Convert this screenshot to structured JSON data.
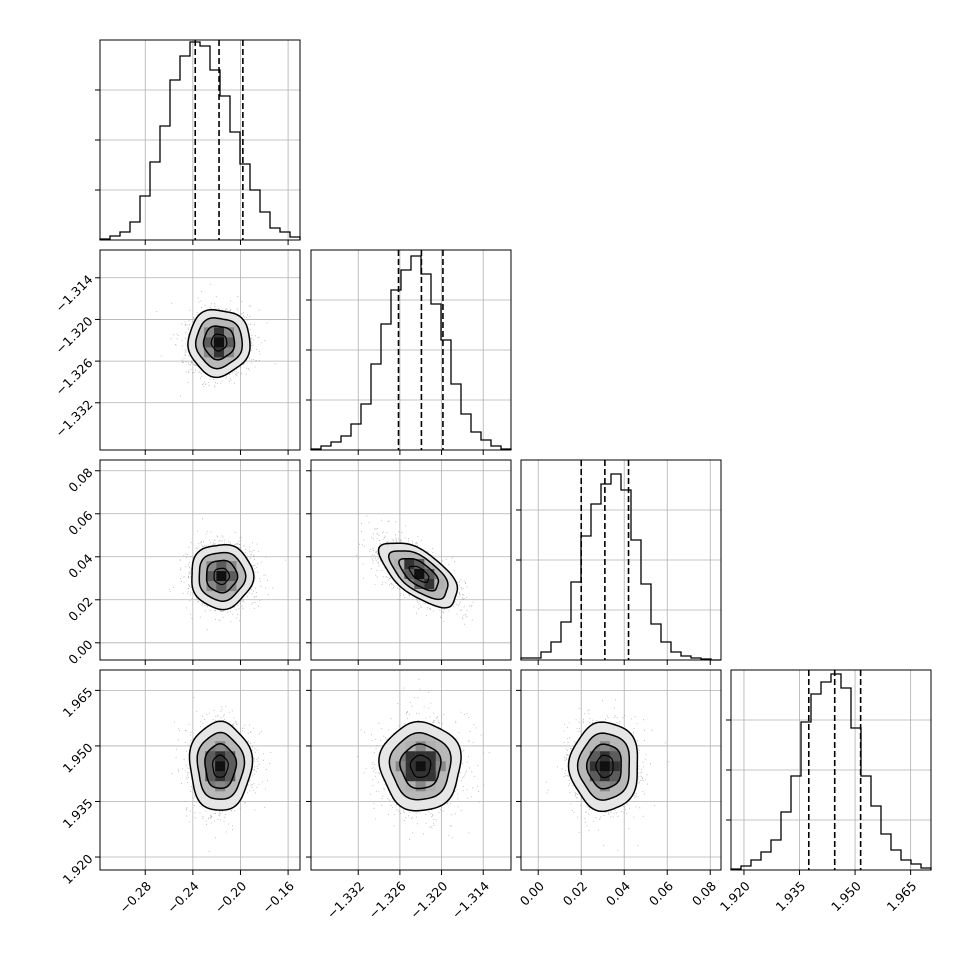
{
  "chart_data": {
    "type": "corner",
    "title": "",
    "parameters": [
      {
        "label": "",
        "ticks": [
          "−0.28",
          "−0.24",
          "−0.20",
          "−0.16"
        ],
        "tick_values": [
          -0.28,
          -0.24,
          -0.2,
          -0.16
        ],
        "range": [
          -0.318,
          -0.15
        ],
        "median": -0.218,
        "q16": -0.238,
        "q84": -0.198,
        "hist": [
          0.005,
          0.02,
          0.04,
          0.09,
          0.22,
          0.39,
          0.57,
          0.8,
          0.92,
          0.99,
          0.97,
          0.85,
          0.72,
          0.54,
          0.38,
          0.25,
          0.14,
          0.06,
          0.04,
          0.015
        ]
      },
      {
        "label": "",
        "ticks": [
          "−1.332",
          "−1.326",
          "−1.320",
          "−1.314"
        ],
        "tick_values": [
          -1.332,
          -1.326,
          -1.32,
          -1.314
        ],
        "range": [
          -1.3388,
          -1.31
        ],
        "median": -1.3229,
        "q16": -1.3262,
        "q84": -1.3198,
        "hist": [
          0.005,
          0.02,
          0.04,
          0.07,
          0.13,
          0.23,
          0.43,
          0.63,
          0.8,
          0.9,
          0.97,
          0.88,
          0.73,
          0.55,
          0.33,
          0.18,
          0.09,
          0.05,
          0.02,
          0.005
        ]
      },
      {
        "label": "",
        "ticks": [
          "0.00",
          "0.02",
          "0.04",
          "0.06",
          "0.08"
        ],
        "tick_values": [
          0.0,
          0.02,
          0.04,
          0.06,
          0.08
        ],
        "range": [
          -0.008,
          0.085
        ],
        "median": 0.031,
        "q16": 0.02,
        "q84": 0.042,
        "hist": [
          0.01,
          0.01,
          0.04,
          0.09,
          0.19,
          0.39,
          0.62,
          0.78,
          0.88,
          0.93,
          0.85,
          0.6,
          0.38,
          0.18,
          0.09,
          0.04,
          0.02,
          0.01,
          0.005,
          0.0
        ]
      },
      {
        "label": "",
        "ticks": [
          "1.920",
          "1.935",
          "1.950",
          "1.965"
        ],
        "tick_values": [
          1.92,
          1.935,
          1.95,
          1.965
        ],
        "range": [
          1.9165,
          1.9705
        ],
        "median": 1.9445,
        "q16": 1.9375,
        "q84": 1.9515,
        "hist": [
          0.005,
          0.02,
          0.05,
          0.09,
          0.15,
          0.29,
          0.47,
          0.74,
          0.88,
          0.94,
          0.98,
          0.91,
          0.71,
          0.47,
          0.32,
          0.18,
          0.1,
          0.05,
          0.03,
          0.01
        ]
      }
    ],
    "hist_ticks": [
      0.25,
      0.5,
      0.75
    ],
    "pairs": [
      {
        "row": 1,
        "col": 0,
        "center": [
          -0.218,
          -1.3233
        ],
        "sigma": [
          0.013,
          0.0024
        ],
        "rho": 0.0
      },
      {
        "row": 2,
        "col": 0,
        "center": [
          -0.216,
          0.031
        ],
        "sigma": [
          0.013,
          0.0075
        ],
        "rho": 0.0
      },
      {
        "row": 2,
        "col": 1,
        "center": [
          -1.3232,
          0.032
        ],
        "sigma": [
          0.0028,
          0.0075
        ],
        "rho": -0.62
      },
      {
        "row": 3,
        "col": 0,
        "center": [
          -0.217,
          1.9445
        ],
        "sigma": [
          0.013,
          0.006
        ],
        "rho": 0.0
      },
      {
        "row": 3,
        "col": 1,
        "center": [
          -1.323,
          1.9445
        ],
        "sigma": [
          0.0029,
          0.006
        ],
        "rho": 0.0
      },
      {
        "row": 3,
        "col": 2,
        "center": [
          0.031,
          1.9445
        ],
        "sigma": [
          0.008,
          0.006
        ],
        "rho": 0.0
      }
    ],
    "contour_levels_sigma": [
      0.5,
      1.0,
      1.5,
      2.0
    ],
    "grid": true
  }
}
